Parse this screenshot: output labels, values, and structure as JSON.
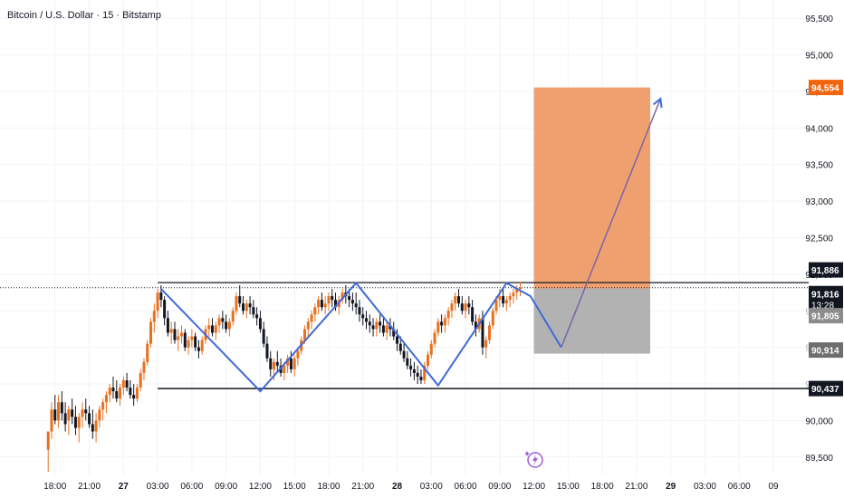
{
  "header": {
    "title": "Bitcoin / U.S. Dollar · 15 · Bitstamp"
  },
  "colors": {
    "up": "#e8701f",
    "down": "#131722",
    "grid": "#f0f3fa",
    "target_zone": "#f0a06e",
    "stop_zone": "#b2b2b2",
    "pattern_line": "#3f6ad8",
    "projection_line": "#7d63a6",
    "target_label": "#f2650f",
    "dark_label": "#131722",
    "gray_label": "#8c8c8c"
  },
  "chart_data": {
    "type": "candlestick",
    "symbol": "Bitcoin / U.S. Dollar",
    "interval": "15",
    "exchange": "Bitstamp",
    "y_ticks": [
      89500,
      90000,
      90500,
      91000,
      91500,
      92000,
      92500,
      93000,
      93500,
      94000,
      94500,
      95000,
      95500
    ],
    "y_tick_labels": [
      "89,500",
      "90,000",
      "90,500",
      "91,000",
      "91,500",
      "92,000",
      "92,500",
      "93,000",
      "93,500",
      "94,000",
      "94,500",
      "95,000",
      "95,500"
    ],
    "ylim": [
      89250,
      95750
    ],
    "x_ticks": [
      "18:00",
      "21:00",
      "27",
      "03:00",
      "06:00",
      "09:00",
      "12:00",
      "15:00",
      "18:00",
      "21:00",
      "28",
      "03:00",
      "06:00",
      "09:00",
      "12:00",
      "15:00",
      "18:00",
      "21:00",
      "29",
      "03:00",
      "06:00",
      "09"
    ],
    "bold_x_ticks": [
      "27",
      "28",
      "29"
    ],
    "xlim": [
      -1.0,
      21.9
    ],
    "last_candle_x": 13.9,
    "price_labels": [
      {
        "text": "94,554",
        "value": 94554,
        "style": "target"
      },
      {
        "text": "91,886",
        "value": 91886,
        "style": "dark"
      },
      {
        "text": "91,816",
        "value": 91816,
        "style": "dark",
        "sub": "13:28"
      },
      {
        "text": "91,805",
        "value": 91805,
        "style": "gray"
      },
      {
        "text": "90,914",
        "value": 90914,
        "style": "gray_dark"
      },
      {
        "text": "90,437",
        "value": 90437,
        "style": "dark"
      }
    ],
    "resistance_line": {
      "value": 91886,
      "x_start": 3.0
    },
    "support_line": {
      "value": 90437,
      "x_start": 3.0
    },
    "current_price": 91816,
    "position": {
      "x_start": 14.0,
      "x_end": 17.4,
      "entry": 91805,
      "target": 94554,
      "stop": 90914
    },
    "pattern_path": [
      {
        "x": 3.1,
        "y": 91800
      },
      {
        "x": 6.0,
        "y": 90400
      },
      {
        "x": 8.8,
        "y": 91880
      },
      {
        "x": 11.2,
        "y": 90480
      },
      {
        "x": 13.2,
        "y": 91880
      },
      {
        "x": 13.9,
        "y": 91700
      },
      {
        "x": 14.8,
        "y": 91000
      }
    ],
    "projection_path": [
      {
        "x": 14.8,
        "y": 91000
      },
      {
        "x": 17.7,
        "y": 94400
      }
    ],
    "candles": [
      [
        -0.2,
        89600,
        89850,
        89300,
        89850
      ],
      [
        -0.1,
        89850,
        90250,
        89750,
        90150
      ],
      [
        0.0,
        90150,
        90350,
        89950,
        90000
      ],
      [
        0.1,
        90000,
        90350,
        89900,
        90250
      ],
      [
        0.2,
        90250,
        90400,
        90000,
        90100
      ],
      [
        0.3,
        90100,
        90250,
        89850,
        89950
      ],
      [
        0.4,
        90000,
        90200,
        89800,
        90150
      ],
      [
        0.5,
        90150,
        90300,
        89950,
        90050
      ],
      [
        0.6,
        90050,
        90200,
        89800,
        89900
      ],
      [
        0.7,
        89900,
        90100,
        89700,
        90050
      ],
      [
        0.8,
        90050,
        90250,
        89900,
        90150
      ],
      [
        0.9,
        90150,
        90300,
        90000,
        90100
      ],
      [
        1.0,
        90100,
        90200,
        89900,
        89950
      ],
      [
        1.1,
        89950,
        90150,
        89750,
        89850
      ],
      [
        1.2,
        89850,
        90100,
        89700,
        90000
      ],
      [
        1.3,
        90000,
        90200,
        89900,
        90150
      ],
      [
        1.4,
        90150,
        90300,
        90000,
        90250
      ],
      [
        1.5,
        90250,
        90400,
        90100,
        90350
      ],
      [
        1.6,
        90350,
        90500,
        90250,
        90450
      ],
      [
        1.7,
        90450,
        90600,
        90300,
        90400
      ],
      [
        1.8,
        90400,
        90550,
        90250,
        90300
      ],
      [
        1.9,
        90300,
        90500,
        90200,
        90450
      ],
      [
        2.0,
        90450,
        90600,
        90350,
        90550
      ],
      [
        2.1,
        90550,
        90650,
        90400,
        90450
      ],
      [
        2.2,
        90450,
        90550,
        90300,
        90350
      ],
      [
        2.3,
        90350,
        90500,
        90200,
        90300
      ],
      [
        2.4,
        90300,
        90500,
        90250,
        90450
      ],
      [
        2.5,
        90450,
        90700,
        90400,
        90650
      ],
      [
        2.6,
        90650,
        90850,
        90550,
        90800
      ],
      [
        2.7,
        90800,
        91100,
        90750,
        91050
      ],
      [
        2.8,
        91050,
        91400,
        91000,
        91350
      ],
      [
        2.9,
        91350,
        91600,
        91200,
        91500
      ],
      [
        3.0,
        91500,
        91800,
        91400,
        91750
      ],
      [
        3.1,
        91750,
        91850,
        91550,
        91650
      ],
      [
        3.2,
        91650,
        91700,
        91300,
        91400
      ],
      [
        3.3,
        91400,
        91500,
        91150,
        91200
      ],
      [
        3.4,
        91200,
        91350,
        91050,
        91250
      ],
      [
        3.5,
        91250,
        91350,
        91050,
        91100
      ],
      [
        3.6,
        91100,
        91250,
        90950,
        91150
      ],
      [
        3.7,
        91150,
        91300,
        91050,
        91200
      ],
      [
        3.8,
        91200,
        91250,
        90950,
        91000
      ],
      [
        3.9,
        91000,
        91150,
        90900,
        91100
      ],
      [
        4.0,
        91100,
        91250,
        91000,
        91150
      ],
      [
        4.1,
        91150,
        91200,
        90950,
        91000
      ],
      [
        4.2,
        91000,
        91100,
        90850,
        90950
      ],
      [
        4.3,
        90950,
        91150,
        90900,
        91100
      ],
      [
        4.4,
        91100,
        91300,
        91050,
        91250
      ],
      [
        4.5,
        91250,
        91400,
        91150,
        91300
      ],
      [
        4.6,
        91300,
        91400,
        91150,
        91200
      ],
      [
        4.7,
        91200,
        91350,
        91100,
        91300
      ],
      [
        4.8,
        91300,
        91450,
        91200,
        91400
      ],
      [
        4.9,
        91400,
        91500,
        91250,
        91350
      ],
      [
        5.0,
        91350,
        91450,
        91200,
        91250
      ],
      [
        5.1,
        91250,
        91400,
        91150,
        91350
      ],
      [
        5.2,
        91350,
        91550,
        91300,
        91500
      ],
      [
        5.3,
        91500,
        91750,
        91450,
        91700
      ],
      [
        5.4,
        91700,
        91850,
        91550,
        91600
      ],
      [
        5.5,
        91600,
        91700,
        91450,
        91500
      ],
      [
        5.6,
        91500,
        91650,
        91400,
        91600
      ],
      [
        5.7,
        91600,
        91700,
        91450,
        91550
      ],
      [
        5.8,
        91550,
        91650,
        91400,
        91450
      ],
      [
        5.9,
        91450,
        91550,
        91300,
        91400
      ],
      [
        6.0,
        91400,
        91500,
        91200,
        91250
      ],
      [
        6.1,
        91250,
        91350,
        91000,
        91050
      ],
      [
        6.2,
        91050,
        91150,
        90800,
        90850
      ],
      [
        6.3,
        90850,
        90950,
        90600,
        90700
      ],
      [
        6.4,
        90700,
        90850,
        90550,
        90800
      ],
      [
        6.5,
        90800,
        90950,
        90650,
        90750
      ],
      [
        6.6,
        90750,
        90850,
        90600,
        90650
      ],
      [
        6.7,
        90650,
        90800,
        90550,
        90750
      ],
      [
        6.8,
        90750,
        90900,
        90650,
        90850
      ],
      [
        6.9,
        90850,
        90950,
        90650,
        90700
      ],
      [
        7.0,
        90700,
        90900,
        90600,
        90850
      ],
      [
        7.1,
        90850,
        91000,
        90750,
        90950
      ],
      [
        7.2,
        90950,
        91150,
        90900,
        91100
      ],
      [
        7.3,
        91100,
        91300,
        91050,
        91250
      ],
      [
        7.4,
        91250,
        91400,
        91150,
        91350
      ],
      [
        7.5,
        91350,
        91500,
        91250,
        91450
      ],
      [
        7.6,
        91450,
        91600,
        91350,
        91550
      ],
      [
        7.7,
        91550,
        91700,
        91450,
        91650
      ],
      [
        7.8,
        91650,
        91750,
        91500,
        91550
      ],
      [
        7.9,
        91550,
        91700,
        91450,
        91600
      ],
      [
        8.0,
        91600,
        91750,
        91500,
        91700
      ],
      [
        8.1,
        91700,
        91800,
        91550,
        91650
      ],
      [
        8.2,
        91650,
        91750,
        91500,
        91550
      ],
      [
        8.3,
        91550,
        91700,
        91450,
        91650
      ],
      [
        8.4,
        91650,
        91800,
        91600,
        91750
      ],
      [
        8.5,
        91750,
        91850,
        91600,
        91700
      ],
      [
        8.6,
        91700,
        91800,
        91550,
        91650
      ],
      [
        8.7,
        91650,
        91750,
        91500,
        91600
      ],
      [
        8.8,
        91600,
        91750,
        91450,
        91550
      ],
      [
        8.9,
        91550,
        91650,
        91350,
        91450
      ],
      [
        9.0,
        91450,
        91550,
        91300,
        91400
      ],
      [
        9.1,
        91400,
        91500,
        91250,
        91350
      ],
      [
        9.2,
        91350,
        91450,
        91200,
        91300
      ],
      [
        9.3,
        91300,
        91400,
        91150,
        91250
      ],
      [
        9.4,
        91250,
        91400,
        91150,
        91350
      ],
      [
        9.5,
        91350,
        91450,
        91200,
        91300
      ],
      [
        9.6,
        91300,
        91400,
        91150,
        91200
      ],
      [
        9.7,
        91200,
        91350,
        91100,
        91300
      ],
      [
        9.8,
        91300,
        91400,
        91150,
        91250
      ],
      [
        9.9,
        91250,
        91350,
        91100,
        91150
      ],
      [
        10.0,
        91150,
        91250,
        90950,
        91050
      ],
      [
        10.1,
        91050,
        91150,
        90900,
        90950
      ],
      [
        10.2,
        90950,
        91050,
        90800,
        90850
      ],
      [
        10.3,
        90850,
        90950,
        90700,
        90750
      ],
      [
        10.4,
        90750,
        90850,
        90600,
        90700
      ],
      [
        10.5,
        90700,
        90800,
        90550,
        90650
      ],
      [
        10.6,
        90650,
        90750,
        90500,
        90600
      ],
      [
        10.7,
        90600,
        90700,
        90500,
        90550
      ],
      [
        10.8,
        90550,
        90800,
        90500,
        90750
      ],
      [
        10.9,
        90750,
        90950,
        90700,
        90900
      ],
      [
        11.0,
        90900,
        91100,
        90850,
        91050
      ],
      [
        11.1,
        91050,
        91250,
        91000,
        91200
      ],
      [
        11.2,
        91200,
        91400,
        91150,
        91350
      ],
      [
        11.3,
        91350,
        91450,
        91200,
        91300
      ],
      [
        11.4,
        91300,
        91450,
        91200,
        91400
      ],
      [
        11.5,
        91400,
        91550,
        91300,
        91500
      ],
      [
        11.6,
        91500,
        91650,
        91400,
        91600
      ],
      [
        11.7,
        91600,
        91750,
        91500,
        91700
      ],
      [
        11.8,
        91700,
        91800,
        91550,
        91600
      ],
      [
        11.9,
        91600,
        91700,
        91450,
        91500
      ],
      [
        12.0,
        91500,
        91650,
        91400,
        91600
      ],
      [
        12.1,
        91600,
        91700,
        91450,
        91550
      ],
      [
        12.2,
        91550,
        91650,
        91300,
        91350
      ],
      [
        12.3,
        91350,
        91450,
        91150,
        91250
      ],
      [
        12.4,
        91250,
        91450,
        91200,
        91400
      ],
      [
        12.5,
        91400,
        91500,
        90900,
        91000
      ],
      [
        12.6,
        91000,
        91150,
        90850,
        91100
      ],
      [
        12.7,
        91100,
        91350,
        91050,
        91300
      ],
      [
        12.8,
        91300,
        91550,
        91250,
        91500
      ],
      [
        12.9,
        91500,
        91700,
        91450,
        91650
      ],
      [
        13.0,
        91650,
        91800,
        91550,
        91700
      ],
      [
        13.1,
        91700,
        91800,
        91550,
        91600
      ],
      [
        13.2,
        91600,
        91700,
        91500,
        91650
      ],
      [
        13.3,
        91650,
        91750,
        91550,
        91700
      ],
      [
        13.4,
        91700,
        91800,
        91600,
        91750
      ],
      [
        13.5,
        91750,
        91850,
        91650,
        91800
      ],
      [
        13.6,
        91800,
        91900,
        91700,
        91816
      ]
    ]
  }
}
